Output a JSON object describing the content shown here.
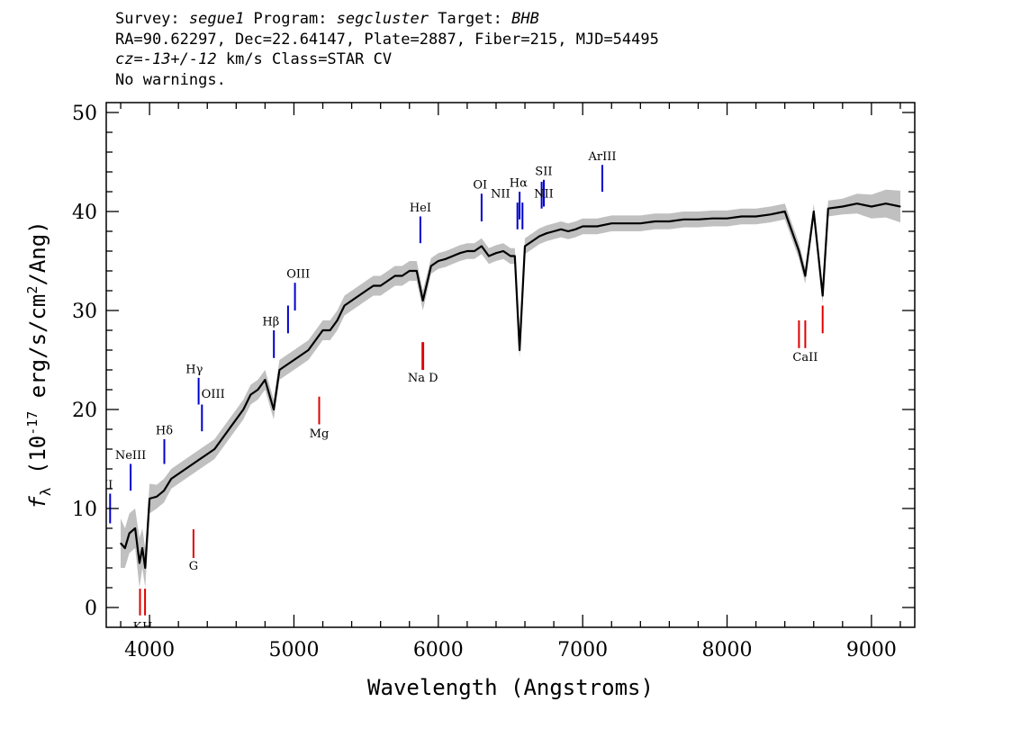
{
  "header": {
    "line1": [
      {
        "text": "Survey: ",
        "italic": false
      },
      {
        "text": "segue1",
        "italic": true
      },
      {
        "text": " Program: ",
        "italic": false
      },
      {
        "text": "segcluster",
        "italic": true
      },
      {
        "text": " Target: ",
        "italic": false
      },
      {
        "text": "BHB",
        "italic": true
      }
    ],
    "line2": "RA=90.62297, Dec=22.64147, Plate=2887, Fiber=215, MJD=54495",
    "line3": [
      {
        "text": "cz=",
        "italic": true
      },
      {
        "text": "-13+/-12",
        "italic": true
      },
      {
        "text": " km/s Class=STAR CV",
        "italic": false
      }
    ],
    "line4": "No warnings."
  },
  "chart_data": {
    "type": "line",
    "xlabel": "Wavelength (Angstroms)",
    "ylabel_parts": [
      "f",
      "λ",
      " (10",
      "-17",
      " erg/s/cm",
      "2",
      "/Ang)"
    ],
    "xlim": [
      3700,
      9300
    ],
    "ylim": [
      -2,
      51
    ],
    "xticks": [
      4000,
      5000,
      6000,
      7000,
      8000,
      9000
    ],
    "yticks": [
      0,
      10,
      20,
      30,
      40,
      50
    ],
    "grid": false,
    "colors": {
      "flux": "#000000",
      "error_band": "#c0c0c0",
      "emission": "#0000cc",
      "absorption": "#e00000"
    },
    "series": [
      {
        "x": [
          3800,
          3830,
          3860,
          3900,
          3930,
          3950,
          3970,
          4000,
          4050,
          4100,
          4150,
          4200,
          4250,
          4300,
          4350,
          4400,
          4450,
          4500,
          4550,
          4600,
          4650,
          4700,
          4750,
          4800,
          4860,
          4900,
          4950,
          5000,
          5050,
          5100,
          5150,
          5200,
          5250,
          5300,
          5350,
          5400,
          5450,
          5500,
          5550,
          5600,
          5650,
          5700,
          5750,
          5800,
          5850,
          5893,
          5950,
          6000,
          6050,
          6100,
          6150,
          6200,
          6250,
          6300,
          6350,
          6400,
          6450,
          6500,
          6530,
          6563,
          6600,
          6650,
          6700,
          6750,
          6800,
          6850,
          6900,
          6950,
          7000,
          7100,
          7200,
          7300,
          7400,
          7500,
          7600,
          7700,
          7800,
          7900,
          8000,
          8100,
          8200,
          8300,
          8400,
          8498,
          8542,
          8600,
          8662,
          8700,
          8800,
          8900,
          9000,
          9100,
          9200
        ],
        "y": [
          6.5,
          6.0,
          7.5,
          8.0,
          4.5,
          6.0,
          4.0,
          11.0,
          11.2,
          11.8,
          13.0,
          13.5,
          14.0,
          14.5,
          15.0,
          15.5,
          16.0,
          17.0,
          18.0,
          19.0,
          20.0,
          21.5,
          22.0,
          23.0,
          20.0,
          24.0,
          24.5,
          25.0,
          25.5,
          26.0,
          27.0,
          28.0,
          28.0,
          29.0,
          30.5,
          31.0,
          31.5,
          32.0,
          32.5,
          32.5,
          33.0,
          33.5,
          33.5,
          34.0,
          34.0,
          31.0,
          34.5,
          35.0,
          35.2,
          35.5,
          35.8,
          36.0,
          36.0,
          36.5,
          35.5,
          35.8,
          36.0,
          35.5,
          35.5,
          26.0,
          36.5,
          37.0,
          37.5,
          37.8,
          38.0,
          38.2,
          38.0,
          38.2,
          38.5,
          38.5,
          38.8,
          38.8,
          38.8,
          39.0,
          39.0,
          39.2,
          39.2,
          39.3,
          39.3,
          39.5,
          39.5,
          39.7,
          40.0,
          36.0,
          33.5,
          40.0,
          31.5,
          40.3,
          40.5,
          40.8,
          40.5,
          40.8,
          40.5
        ],
        "err": [
          2.5,
          2.0,
          2.0,
          2.0,
          2.5,
          2.0,
          2.0,
          1.5,
          1.2,
          1.2,
          1.0,
          1.0,
          1.0,
          1.0,
          1.0,
          1.0,
          1.0,
          1.0,
          1.0,
          1.0,
          1.0,
          1.0,
          1.0,
          1.0,
          1.0,
          1.0,
          1.0,
          1.0,
          1.0,
          1.0,
          1.0,
          1.0,
          1.0,
          1.0,
          1.0,
          1.0,
          1.0,
          1.0,
          1.0,
          1.0,
          1.0,
          1.0,
          1.0,
          1.0,
          1.0,
          1.0,
          0.8,
          0.8,
          0.8,
          0.8,
          0.8,
          0.8,
          0.8,
          0.8,
          0.8,
          0.8,
          0.8,
          0.8,
          0.8,
          0.8,
          0.8,
          0.8,
          0.8,
          0.8,
          0.8,
          0.8,
          0.8,
          0.8,
          0.8,
          0.8,
          0.8,
          0.8,
          0.8,
          0.8,
          0.8,
          0.8,
          0.8,
          0.8,
          0.8,
          0.8,
          0.8,
          0.8,
          0.8,
          0.8,
          0.8,
          0.8,
          0.8,
          0.8,
          0.8,
          1.0,
          1.2,
          1.4,
          1.6
        ]
      }
    ],
    "lines": [
      {
        "label": "OII",
        "x": 3727,
        "y1": 8.5,
        "y2": 11.5,
        "kind": "emission",
        "text_y": 12.0
      },
      {
        "label": "NeIII",
        "x": 3869,
        "y1": 11.8,
        "y2": 14.5,
        "kind": "emission",
        "text_y": 15.0
      },
      {
        "label": "Hδ",
        "x": 4102,
        "y1": 14.5,
        "y2": 17.0,
        "kind": "emission",
        "text_y": 17.5
      },
      {
        "label": "Hγ",
        "x": 4340,
        "y1": 20.5,
        "y2": 23.2,
        "kind": "emission",
        "text_y": 23.7
      },
      {
        "label": "OIII",
        "x": 4363,
        "y1": 17.8,
        "y2": 20.5,
        "kind": "emission",
        "text_y": 21.2
      },
      {
        "label": "Hβ",
        "x": 4861,
        "y1": 25.2,
        "y2": 28.0,
        "kind": "emission",
        "text_y": 28.5
      },
      {
        "label": "OIII",
        "x": 4959,
        "y1": 27.7,
        "y2": 30.5,
        "kind": "emission",
        "text_y": 31.0
      },
      {
        "label": "OIII",
        "x": 5007,
        "y1": 30.0,
        "y2": 32.8,
        "kind": "emission",
        "text_y": 33.3
      },
      {
        "label": "HeI",
        "x": 5876,
        "y1": 36.8,
        "y2": 39.5,
        "kind": "emission",
        "text_y": 40.0
      },
      {
        "label": "OI",
        "x": 6300,
        "y1": 39.0,
        "y2": 41.8,
        "kind": "emission",
        "text_y": 42.3
      },
      {
        "label": "NII",
        "x": 6548,
        "y1": 38.2,
        "y2": 40.9,
        "kind": "emission",
        "text_y": 41.4
      },
      {
        "label": "Hα",
        "x": 6563,
        "y1": 39.2,
        "y2": 42.0,
        "kind": "emission",
        "text_y": 42.5
      },
      {
        "label": "NII",
        "x": 6583,
        "y1": 38.2,
        "y2": 40.9,
        "kind": "emission",
        "text_y": 41.4
      },
      {
        "label": "SII",
        "x": 6716,
        "y1": 40.3,
        "y2": 43.0,
        "kind": "emission",
        "text_y": 43.5
      },
      {
        "label": "SII",
        "x": 6731,
        "y1": 40.5,
        "y2": 43.2,
        "kind": "emission",
        "text_y": 43.7
      },
      {
        "label": "ArIII",
        "x": 7136,
        "y1": 42.0,
        "y2": 44.7,
        "kind": "emission",
        "text_y": 45.2
      },
      {
        "label": "K",
        "x": 3934,
        "y1": -0.8,
        "y2": 1.9,
        "kind": "absorption",
        "text_y": -2.3
      },
      {
        "label": "H",
        "x": 3969,
        "y1": -0.8,
        "y2": 1.9,
        "kind": "absorption",
        "text_y": -2.3
      },
      {
        "label": "G",
        "x": 4304,
        "y1": 5.0,
        "y2": 7.9,
        "kind": "absorption",
        "text_y": 3.8
      },
      {
        "label": "Mg",
        "x": 5175,
        "y1": 18.5,
        "y2": 21.3,
        "kind": "absorption",
        "text_y": 17.2
      },
      {
        "label": "Na",
        "x": 5890,
        "y1": 24.0,
        "y2": 26.8,
        "kind": "absorption",
        "text_y": 22.8
      },
      {
        "label": "D",
        "x": 5896,
        "y1": 24.0,
        "y2": 26.8,
        "kind": "absorption",
        "text_y": 22.8
      },
      {
        "label": "CaII",
        "x": 8498,
        "y1": 26.2,
        "y2": 29.0,
        "kind": "absorption",
        "text_y": 24.9
      },
      {
        "label": "CaII",
        "x": 8542,
        "y1": 26.2,
        "y2": 29.0,
        "kind": "absorption",
        "text_y": 24.9
      },
      {
        "label": "CaII",
        "x": 8662,
        "y1": 27.7,
        "y2": 30.5,
        "kind": "absorption",
        "text_y": 26.4
      }
    ],
    "printed_labels": [
      {
        "text": "OII",
        "x": 3680,
        "y": 12.0,
        "kind": "emission"
      },
      {
        "text": "NeIII",
        "x": 3869,
        "y": 15.0,
        "kind": "emission"
      },
      {
        "text": "Hδ",
        "x": 4102,
        "y": 17.5,
        "kind": "emission"
      },
      {
        "text": "Hγ",
        "x": 4310,
        "y": 23.7,
        "kind": "emission"
      },
      {
        "text": "OIII",
        "x": 4440,
        "y": 21.2,
        "kind": "emission"
      },
      {
        "text": "Hβ",
        "x": 4840,
        "y": 28.5,
        "kind": "emission"
      },
      {
        "text": "OIII",
        "x": 5030,
        "y": 33.3,
        "kind": "emission"
      },
      {
        "text": "HeI",
        "x": 5876,
        "y": 40.0,
        "kind": "emission"
      },
      {
        "text": "OI",
        "x": 6290,
        "y": 42.3,
        "kind": "emission"
      },
      {
        "text": "NII",
        "x": 6430,
        "y": 41.4,
        "kind": "emission"
      },
      {
        "text": "Hα",
        "x": 6555,
        "y": 42.5,
        "kind": "emission"
      },
      {
        "text": "NII",
        "x": 6730,
        "y": 41.4,
        "kind": "emission"
      },
      {
        "text": "SII",
        "x": 6730,
        "y": 43.7,
        "kind": "emission"
      },
      {
        "text": "ArIII",
        "x": 7136,
        "y": 45.2,
        "kind": "emission"
      },
      {
        "text": "K",
        "x": 3915,
        "y": -2.3,
        "kind": "absorption"
      },
      {
        "text": "H",
        "x": 3985,
        "y": -2.3,
        "kind": "absorption"
      },
      {
        "text": "G",
        "x": 4304,
        "y": 3.8,
        "kind": "absorption"
      },
      {
        "text": "Mg",
        "x": 5175,
        "y": 17.2,
        "kind": "absorption"
      },
      {
        "text": "Na  D",
        "x": 5893,
        "y": 22.8,
        "kind": "absorption"
      },
      {
        "text": "CaII",
        "x": 8542,
        "y": 24.9,
        "kind": "absorption"
      }
    ]
  }
}
